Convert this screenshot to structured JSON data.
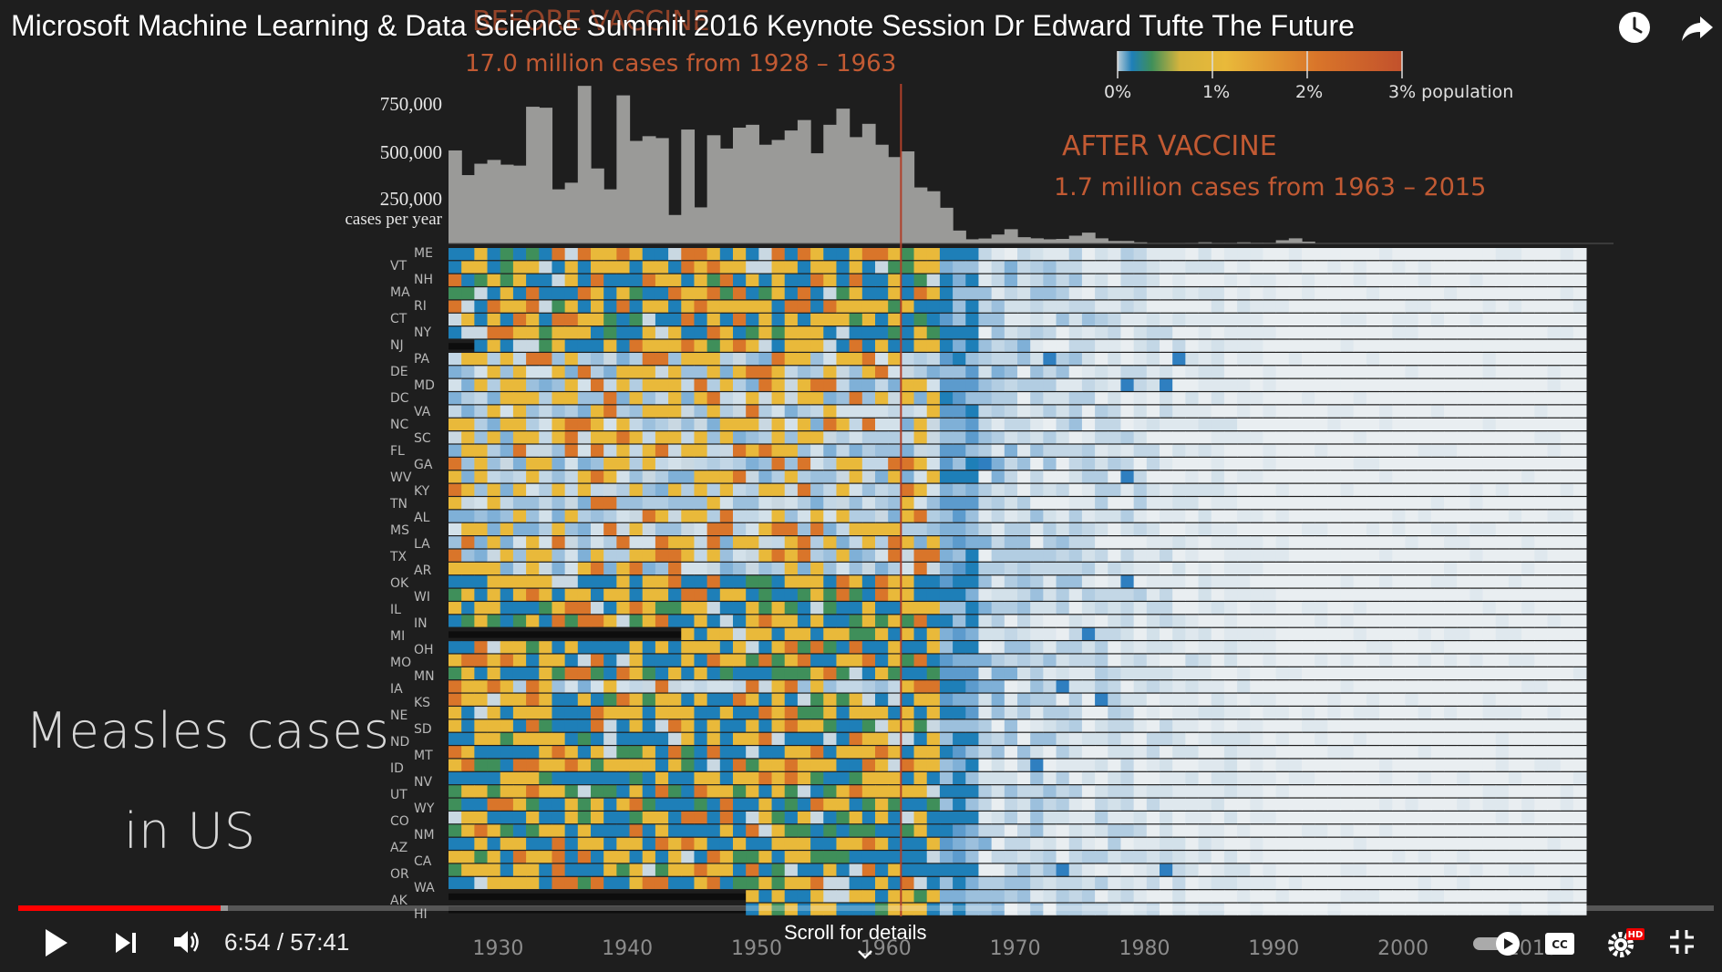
{
  "video": {
    "title": "Microsoft Machine Learning & Data Science Summit 2016 Keynote Session Dr Edward Tufte The Future"
  },
  "top_icons": [
    "watch-later-icon",
    "share-icon"
  ],
  "annotations": {
    "before_title": "BEFORE VACCINE",
    "before_subtitle": "17.0 million cases from 1928 – 1963",
    "after_title": "AFTER VACCINE",
    "after_subtitle": "1.7 million cases from 1963 – 2015"
  },
  "overlay": {
    "line1": "Measles cases",
    "line2": "in US"
  },
  "legend": {
    "labels": [
      "0%",
      "1%",
      "2%",
      "3% population"
    ],
    "colors": [
      "#c9d8e2",
      "#1e7fb8",
      "#3f8f5a",
      "#e9b93a",
      "#d9752a",
      "#c2512c"
    ]
  },
  "chart_data": {
    "type": "heatmap",
    "title": "",
    "bar_chart": {
      "type": "bar",
      "ylabel": "cases per year",
      "y_ticks": [
        "750,000",
        "500,000",
        "250,000"
      ],
      "y_tick_values": [
        750000,
        500000,
        250000
      ],
      "x_range": [
        1928,
        2015
      ],
      "ylim": [
        0,
        850000
      ],
      "values": [
        490000,
        360000,
        420000,
        440000,
        415000,
        410000,
        720000,
        715000,
        285000,
        320000,
        830000,
        395000,
        285000,
        780000,
        540000,
        565000,
        555000,
        150000,
        600000,
        190000,
        570000,
        500000,
        610000,
        625000,
        520000,
        545000,
        595000,
        650000,
        475000,
        625000,
        710000,
        560000,
        630000,
        520000,
        455000,
        485000,
        295000,
        275000,
        188000,
        68000,
        22000,
        26000,
        47000,
        75000,
        33000,
        27000,
        22000,
        24000,
        41000,
        57000,
        27000,
        13000,
        13000,
        6000,
        2500,
        1500,
        2500,
        2800,
        6300,
        3000,
        3000,
        6000,
        3500,
        3400,
        17000,
        27000,
        9600,
        2200,
        300,
        1000,
        500,
        500,
        300,
        100,
        100,
        100,
        100,
        100,
        60,
        100,
        200,
        100,
        200,
        200,
        200,
        700,
        200,
        200
      ]
    },
    "vaccine_year": 1963,
    "x_ticks": [
      "1930",
      "1940",
      "1950",
      "1960",
      "1970",
      "1980",
      "1990",
      "2000",
      "2010"
    ],
    "x_tick_values": [
      1930,
      1940,
      1950,
      1960,
      1970,
      1980,
      1990,
      2000,
      2010
    ],
    "rows_left": [
      "VT",
      "MA",
      "CT",
      "NJ",
      "DE",
      "DC",
      "NC",
      "FL",
      "WV",
      "TN",
      "MS",
      "TX",
      "OK",
      "IL",
      "MI",
      "MO",
      "IA",
      "NE",
      "ND",
      "ID",
      "UT",
      "CO",
      "AZ",
      "OR",
      "AK"
    ],
    "rows_right": [
      "ME",
      "NH",
      "RI",
      "NY",
      "PA",
      "MD",
      "VA",
      "SC",
      "GA",
      "KY",
      "AL",
      "LA",
      "AR",
      "WI",
      "IN",
      "OH",
      "MN",
      "KS",
      "SD",
      "MT",
      "NV",
      "WY",
      "NM",
      "CA",
      "WA",
      "HI"
    ],
    "color_scale": "percent of population infected, 0% to 3%"
  },
  "player": {
    "current_time": "6:54",
    "duration": "57:41",
    "time_display": "6:54 / 57:41",
    "progress": 0.1195,
    "buffered": 0.1235,
    "scroll_hint": "Scroll for details",
    "hd_badge": "HD",
    "cc_label": "CC",
    "autoplay": "on"
  }
}
